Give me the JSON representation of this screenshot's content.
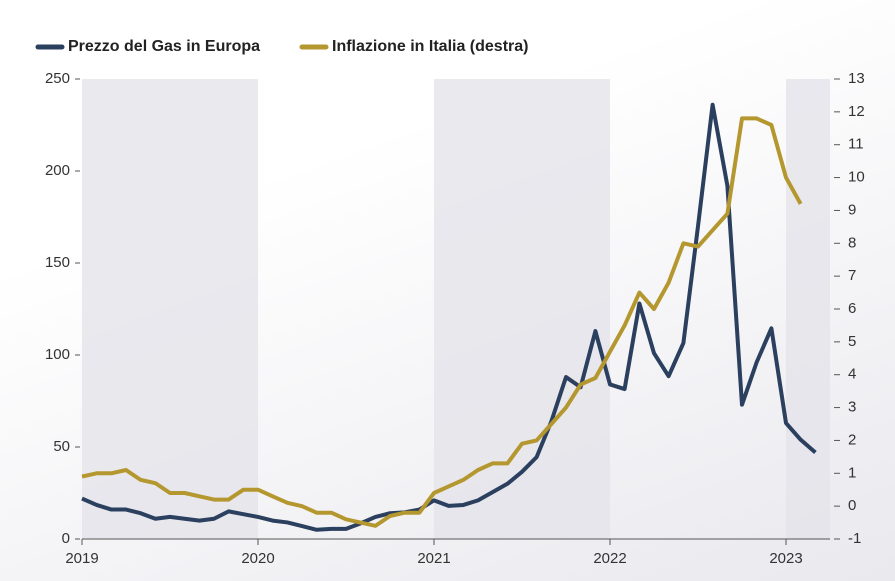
{
  "chart_data": {
    "type": "line",
    "x": [
      2019,
      2019.083,
      2019.167,
      2019.25,
      2019.333,
      2019.417,
      2019.5,
      2019.583,
      2019.667,
      2019.75,
      2019.833,
      2019.917,
      2020,
      2020.083,
      2020.167,
      2020.25,
      2020.333,
      2020.417,
      2020.5,
      2020.583,
      2020.667,
      2020.75,
      2020.833,
      2020.917,
      2021,
      2021.083,
      2021.167,
      2021.25,
      2021.333,
      2021.417,
      2021.5,
      2021.583,
      2021.667,
      2021.75,
      2021.833,
      2021.917,
      2022,
      2022.083,
      2022.167,
      2022.25,
      2022.333,
      2022.417,
      2022.5,
      2022.583,
      2022.667,
      2022.75,
      2022.833,
      2022.917,
      2023,
      2023.083,
      2023.167
    ],
    "series": [
      {
        "name": "Prezzo del Gas in Europa",
        "color": "#2b3f5e",
        "values": [
          22,
          18.5,
          16,
          16,
          14,
          11,
          12,
          11,
          10,
          11,
          15,
          13.5,
          12,
          10,
          9,
          7,
          5,
          5.5,
          5.5,
          8.5,
          12,
          14,
          14.5,
          16,
          21,
          18,
          18.5,
          21,
          25.5,
          30,
          36.5,
          44.5,
          64,
          88,
          82.5,
          113,
          84,
          81.5,
          128,
          101,
          88.5,
          106.5,
          170,
          236,
          192,
          73,
          96,
          114.5,
          63,
          54,
          47
        ]
      },
      {
        "name": "Inflazione in Italia (destra)",
        "color": "#b5972f",
        "axis": "y2",
        "values": [
          0.9,
          1.0,
          1.0,
          1.1,
          0.8,
          0.7,
          0.4,
          0.4,
          0.3,
          0.2,
          0.2,
          0.5,
          0.5,
          0.3,
          0.1,
          0.0,
          -0.2,
          -0.2,
          -0.4,
          -0.5,
          -0.6,
          -0.3,
          -0.2,
          -0.2,
          0.4,
          0.6,
          0.8,
          1.1,
          1.3,
          1.3,
          1.9,
          2.0,
          2.5,
          3.0,
          3.7,
          3.9,
          4.7,
          5.5,
          6.5,
          6.0,
          6.8,
          8.0,
          7.9,
          8.4,
          8.9,
          11.8,
          11.8,
          11.6,
          10.0,
          9.2,
          null
        ]
      }
    ],
    "xlim": [
      2019,
      2023.25
    ],
    "xticks": [
      2019,
      2020,
      2021,
      2022,
      2023
    ],
    "ylim": [
      0,
      250
    ],
    "yticks": [
      0,
      50,
      100,
      150,
      200,
      250
    ],
    "y2lim": [
      -1,
      13
    ],
    "y2ticks": [
      -1,
      0,
      1,
      2,
      3,
      4,
      5,
      6,
      7,
      8,
      9,
      10,
      11,
      12,
      13
    ],
    "grid": false
  }
}
